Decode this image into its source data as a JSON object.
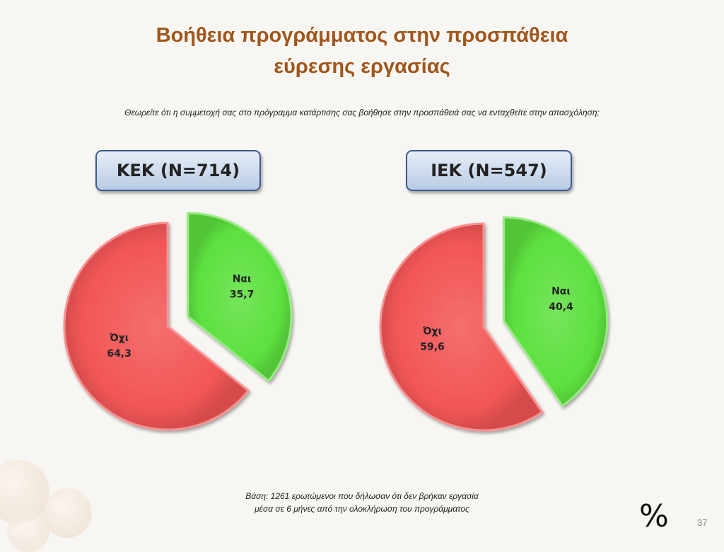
{
  "slide": {
    "title_line1": "Βοήθεια προγράμματος στην προσπάθεια",
    "title_line2": "εύρεσης εργασίας",
    "question": "Θεωρείτε ότι η συμμετοχή σας στο πρόγραμμα κατάρτισης σας βοήθησε στην προσπάθειά σας να ενταχθείτε στην απασχόληση;",
    "basis_line1": "Βάση: 1261 ερωτώμενοι που δήλωσαν ότι δεν βρήκαν εργασία",
    "basis_line2": "μέσα σε 6 μήνες από την ολοκλήρωση του προγράμματος",
    "unit_symbol": "%",
    "page_number": "37"
  },
  "chart_data": [
    {
      "type": "pie",
      "title": "ΚΕΚ (Ν=714)",
      "categories": [
        "Ναι",
        "Όχι"
      ],
      "values": [
        35.7,
        64.3
      ],
      "value_labels": [
        "35,7",
        "64,3"
      ],
      "colors": [
        "#5de03f",
        "#f25656"
      ],
      "exploded": "Ναι"
    },
    {
      "type": "pie",
      "title": "ΙΕΚ (Ν=547)",
      "categories": [
        "Ναι",
        "Όχι"
      ],
      "values": [
        40.4,
        59.6
      ],
      "value_labels": [
        "40,4",
        "59,6"
      ],
      "colors": [
        "#5de03f",
        "#f25656"
      ],
      "exploded": "Ναι"
    }
  ]
}
